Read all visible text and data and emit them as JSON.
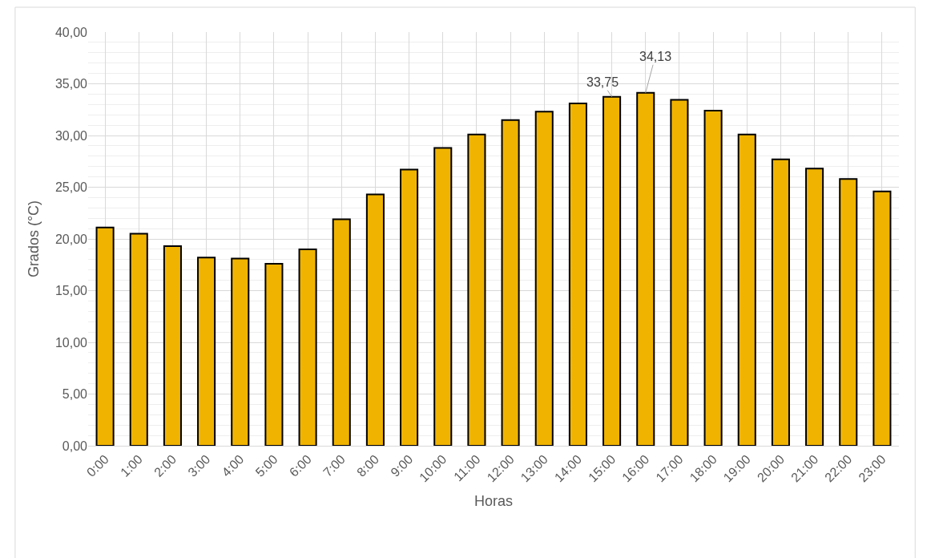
{
  "chart_data": {
    "type": "bar",
    "xlabel": "Horas",
    "ylabel": "Grados (°C)",
    "categories": [
      "0:00",
      "1:00",
      "2:00",
      "3:00",
      "4:00",
      "5:00",
      "6:00",
      "7:00",
      "8:00",
      "9:00",
      "10:00",
      "11:00",
      "12:00",
      "13:00",
      "14:00",
      "15:00",
      "16:00",
      "17:00",
      "18:00",
      "19:00",
      "20:00",
      "21:00",
      "22:00",
      "23:00"
    ],
    "values": [
      21.1,
      20.5,
      19.3,
      18.2,
      18.1,
      17.6,
      19.0,
      21.9,
      24.3,
      26.7,
      28.8,
      30.1,
      31.5,
      32.3,
      33.1,
      33.75,
      34.13,
      33.45,
      32.4,
      30.1,
      27.7,
      26.8,
      25.8,
      24.6
    ],
    "value_labels": [
      null,
      null,
      null,
      null,
      null,
      null,
      null,
      null,
      null,
      null,
      null,
      null,
      null,
      null,
      null,
      "33,75",
      "34,13",
      null,
      null,
      null,
      null,
      null,
      null,
      null
    ],
    "color": "#f0b400",
    "ylim": [
      0,
      40
    ],
    "yticks": [
      {
        "value": 0,
        "label": "0,00"
      },
      {
        "value": 5,
        "label": "5,00"
      },
      {
        "value": 10,
        "label": "10,00"
      },
      {
        "value": 15,
        "label": "15,00"
      },
      {
        "value": 20,
        "label": "20,00"
      },
      {
        "value": 25,
        "label": "25,00"
      },
      {
        "value": 30,
        "label": "30,00"
      },
      {
        "value": 35,
        "label": "35,00"
      },
      {
        "value": 40,
        "label": "40,00"
      }
    ],
    "grid": true
  }
}
